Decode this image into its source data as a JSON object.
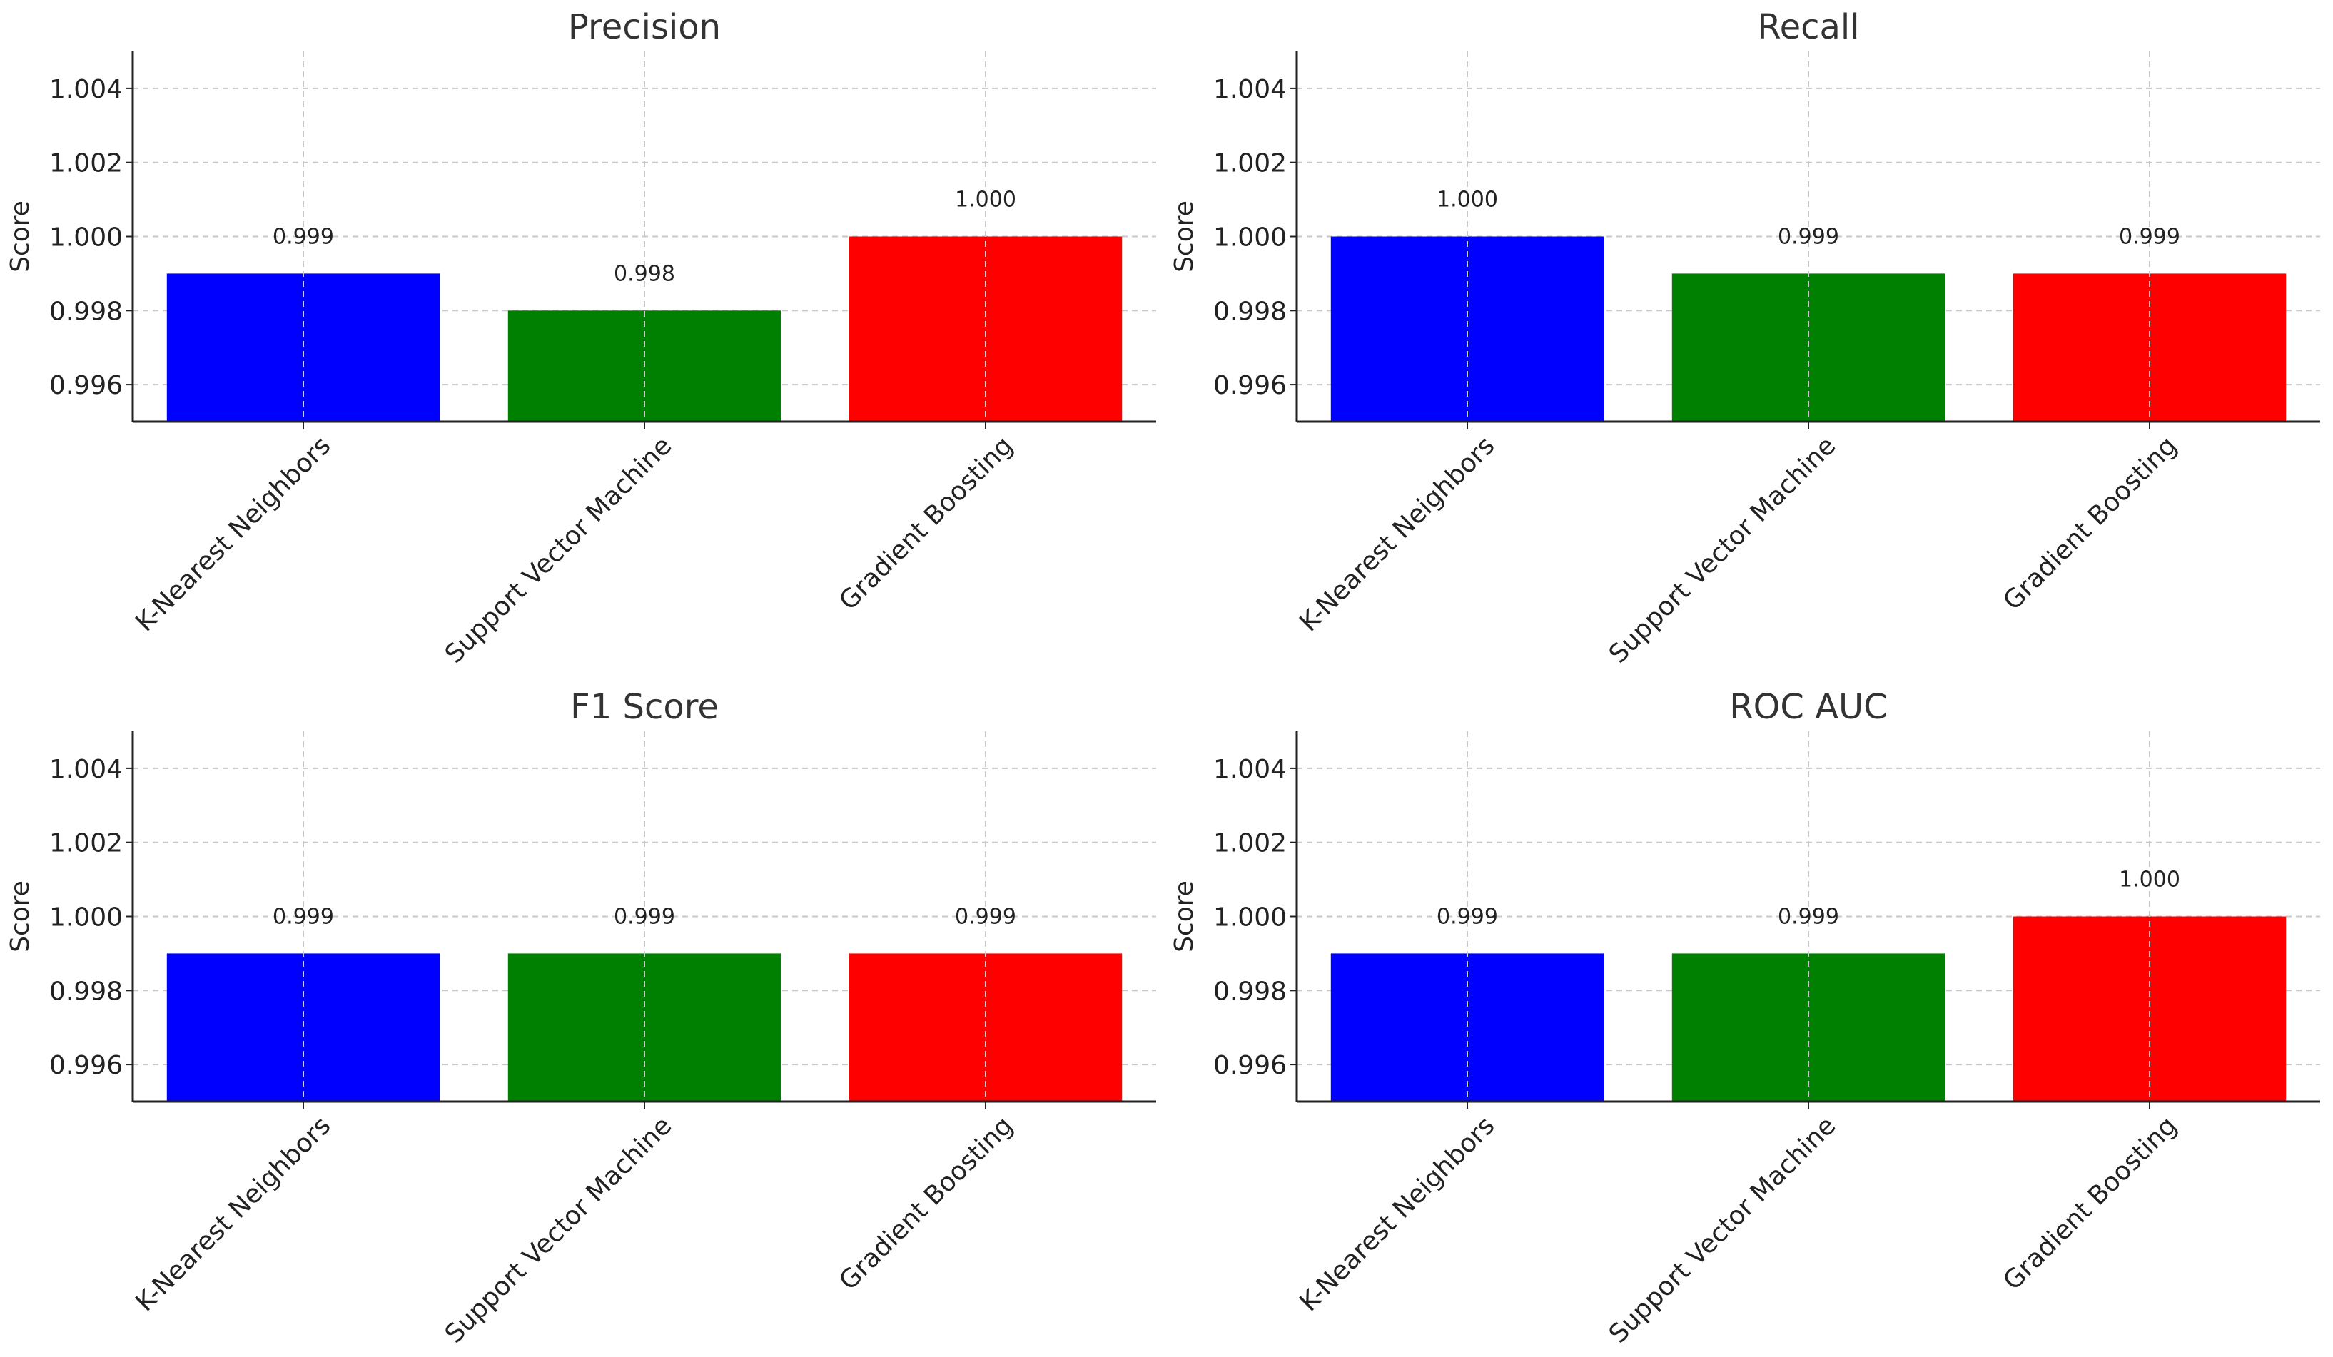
{
  "chart_data": [
    {
      "type": "bar",
      "title": "Precision",
      "categories": [
        "K-Nearest Neighbors",
        "Support Vector Machine",
        "Gradient Boosting"
      ],
      "values": [
        0.999,
        0.998,
        1.0
      ],
      "value_labels": [
        "0.999",
        "0.998",
        "1.000"
      ],
      "colors": [
        "#0000ff",
        "#008000",
        "#ff0000"
      ],
      "xlabel": "",
      "ylabel": "Score",
      "ylim": [
        0.995,
        1.005
      ],
      "yticks": [
        0.996,
        0.998,
        1.0,
        1.002,
        1.004
      ],
      "ytick_labels": [
        "0.996",
        "0.998",
        "1.000",
        "1.002",
        "1.004"
      ],
      "grid": true
    },
    {
      "type": "bar",
      "title": "Recall",
      "categories": [
        "K-Nearest Neighbors",
        "Support Vector Machine",
        "Gradient Boosting"
      ],
      "values": [
        1.0,
        0.999,
        0.999
      ],
      "value_labels": [
        "1.000",
        "0.999",
        "0.999"
      ],
      "colors": [
        "#0000ff",
        "#008000",
        "#ff0000"
      ],
      "xlabel": "",
      "ylabel": "Score",
      "ylim": [
        0.995,
        1.005
      ],
      "yticks": [
        0.996,
        0.998,
        1.0,
        1.002,
        1.004
      ],
      "ytick_labels": [
        "0.996",
        "0.998",
        "1.000",
        "1.002",
        "1.004"
      ],
      "grid": true
    },
    {
      "type": "bar",
      "title": "F1 Score",
      "categories": [
        "K-Nearest Neighbors",
        "Support Vector Machine",
        "Gradient Boosting"
      ],
      "values": [
        0.999,
        0.999,
        0.999
      ],
      "value_labels": [
        "0.999",
        "0.999",
        "0.999"
      ],
      "colors": [
        "#0000ff",
        "#008000",
        "#ff0000"
      ],
      "xlabel": "",
      "ylabel": "Score",
      "ylim": [
        0.995,
        1.005
      ],
      "yticks": [
        0.996,
        0.998,
        1.0,
        1.002,
        1.004
      ],
      "ytick_labels": [
        "0.996",
        "0.998",
        "1.000",
        "1.002",
        "1.004"
      ],
      "grid": true
    },
    {
      "type": "bar",
      "title": "ROC AUC",
      "categories": [
        "K-Nearest Neighbors",
        "Support Vector Machine",
        "Gradient Boosting"
      ],
      "values": [
        0.999,
        0.999,
        1.0
      ],
      "value_labels": [
        "0.999",
        "0.999",
        "1.000"
      ],
      "colors": [
        "#0000ff",
        "#008000",
        "#ff0000"
      ],
      "xlabel": "",
      "ylabel": "Score",
      "ylim": [
        0.995,
        1.005
      ],
      "yticks": [
        0.996,
        0.998,
        1.0,
        1.002,
        1.004
      ],
      "ytick_labels": [
        "0.996",
        "0.998",
        "1.000",
        "1.002",
        "1.004"
      ],
      "grid": true
    }
  ]
}
